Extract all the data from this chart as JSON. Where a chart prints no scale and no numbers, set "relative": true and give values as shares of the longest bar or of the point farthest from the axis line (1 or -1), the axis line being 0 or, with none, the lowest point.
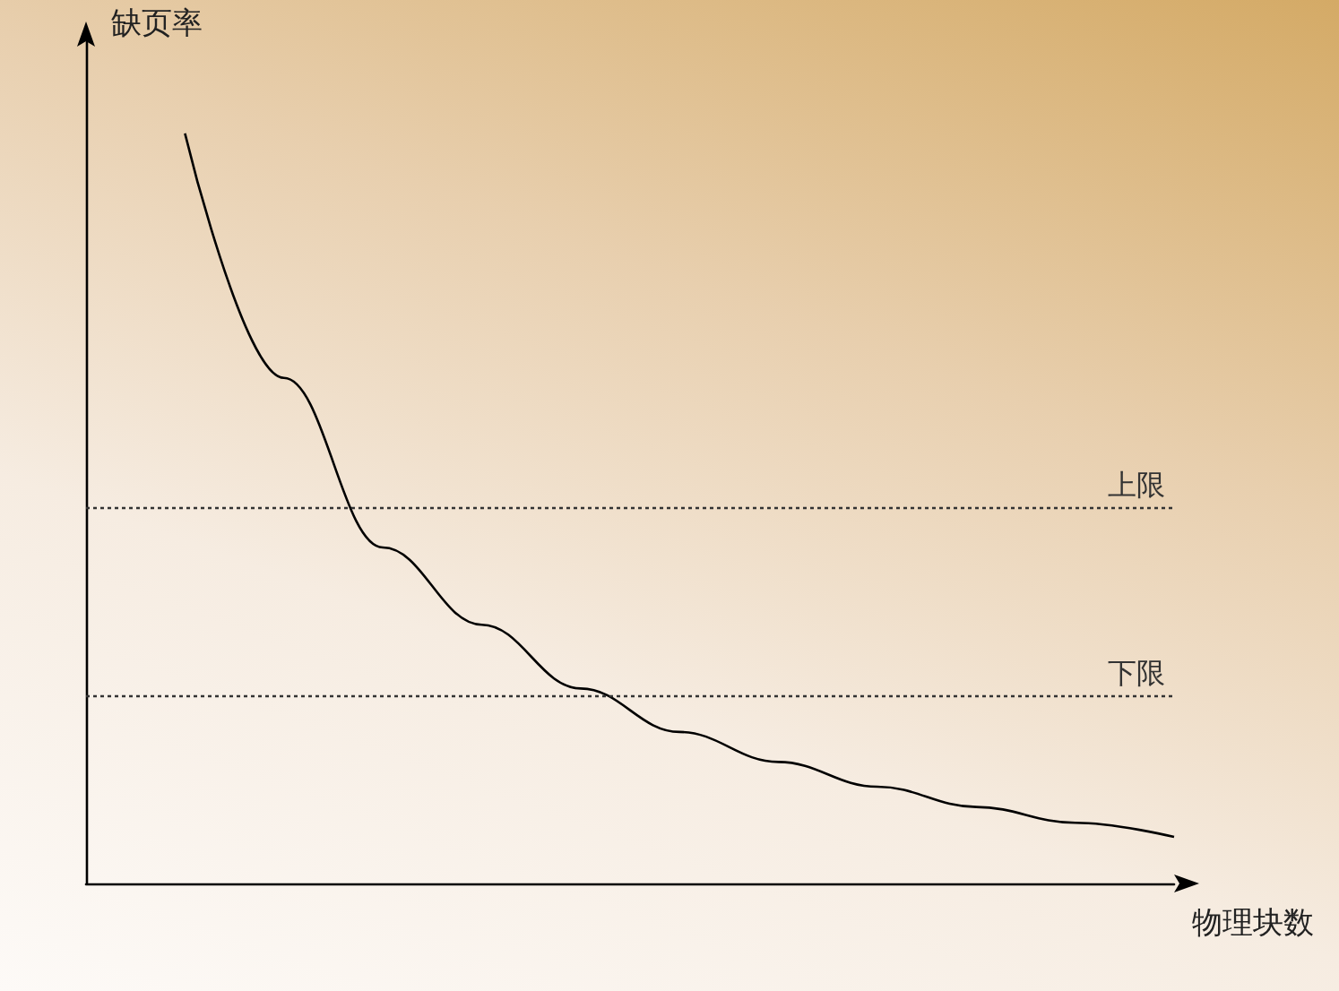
{
  "chart_data": {
    "type": "line",
    "relative": true,
    "xlabel": "物理块数",
    "ylabel": "缺页率",
    "categories": [
      null,
      null,
      null,
      null,
      null,
      null,
      null,
      null,
      null,
      null,
      null,
      null
    ],
    "series": [
      {
        "color": "#000000",
        "values": [
          null,
          1,
          0.674,
          0.448,
          0.345,
          0.26,
          0.202,
          0.162,
          0.129,
          0.102,
          0.081,
          0.062
        ]
      }
    ],
    "ref_lines": [
      {
        "axis": "y",
        "value": 0.5,
        "label": "上限",
        "color": "#333333",
        "line_style": "dotted"
      },
      {
        "axis": "y",
        "value": 0.25,
        "label": "下限",
        "color": "#333333",
        "line_style": "dotted"
      }
    ],
    "marker": "none",
    "line_style": "solid",
    "grid": false
  }
}
